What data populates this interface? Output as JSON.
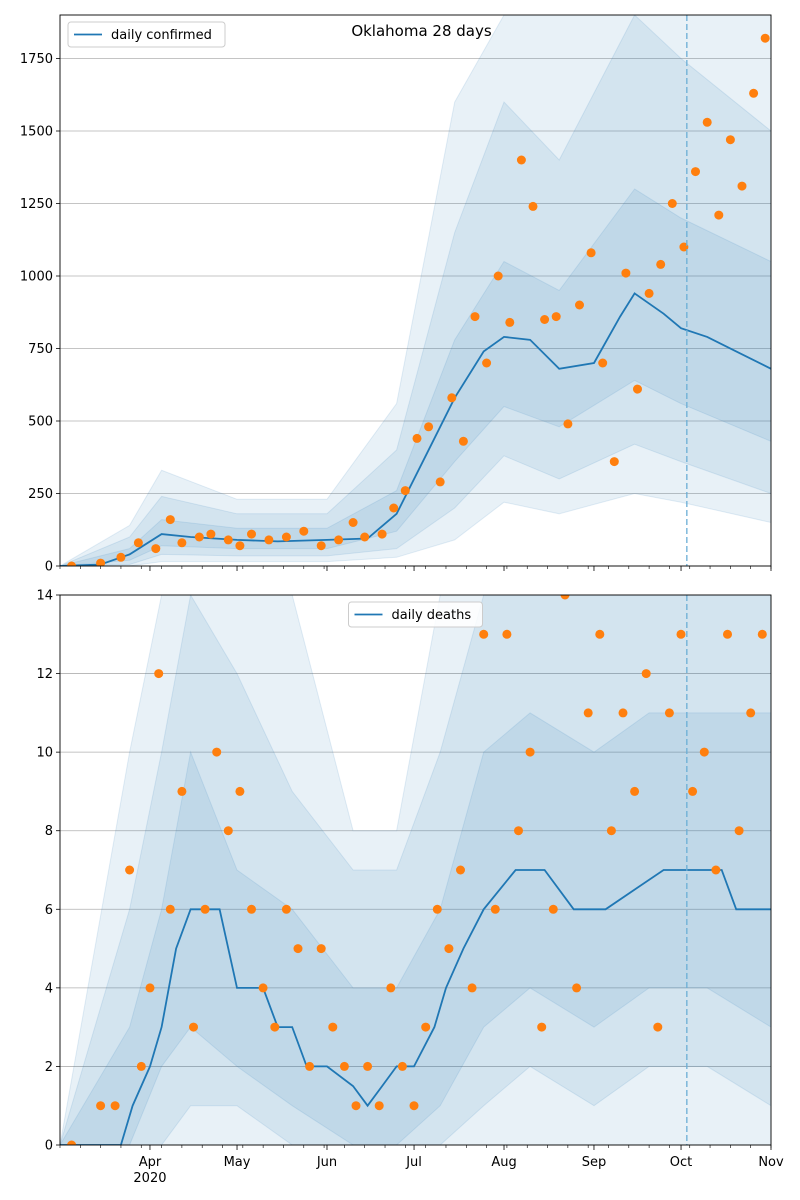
{
  "chart_data": [
    {
      "type": "line",
      "title": "Oklahoma 28 days",
      "legend": {
        "label": "daily confirmed",
        "placement": "top-left"
      },
      "ylim": [
        0,
        1900
      ],
      "yticks": [
        0,
        250,
        500,
        750,
        1000,
        1250,
        1500,
        1750
      ],
      "xlim": [
        "2020-03-01",
        "2020-11-01"
      ],
      "vline": "2020-10-03",
      "grid": "y",
      "colors": {
        "line": "#1f77b4",
        "points": "#ff7f0e",
        "band": "#1f77b4"
      },
      "series": [
        {
          "type": "line",
          "x": [
            "2020-03-01",
            "2020-03-15",
            "2020-03-25",
            "2020-04-05",
            "2020-04-15",
            "2020-05-01",
            "2020-05-15",
            "2020-06-01",
            "2020-06-15",
            "2020-06-25",
            "2020-07-05",
            "2020-07-15",
            "2020-07-25",
            "2020-08-01",
            "2020-08-10",
            "2020-08-20",
            "2020-09-01",
            "2020-09-10",
            "2020-09-15",
            "2020-09-25",
            "2020-10-01",
            "2020-10-10",
            "2020-10-20",
            "2020-11-01"
          ],
          "y": [
            0,
            5,
            40,
            110,
            100,
            90,
            85,
            90,
            95,
            180,
            380,
            580,
            740,
            790,
            780,
            680,
            700,
            860,
            940,
            870,
            820,
            790,
            740,
            680
          ]
        },
        {
          "type": "band",
          "name": "",
          "x": [
            "2020-03-01",
            "2020-03-25",
            "2020-04-05",
            "2020-05-01",
            "2020-06-01",
            "2020-06-25",
            "2020-07-15",
            "2020-08-01",
            "2020-08-20",
            "2020-09-15",
            "2020-10-01",
            "2020-11-01"
          ],
          "lower": [
            0,
            20,
            70,
            60,
            60,
            120,
            360,
            550,
            480,
            640,
            560,
            430
          ],
          "upper": [
            0,
            60,
            160,
            130,
            130,
            260,
            780,
            1050,
            950,
            1300,
            1200,
            1050
          ]
        },
        {
          "type": "band",
          "name": "",
          "x": [
            "2020-03-01",
            "2020-03-25",
            "2020-04-05",
            "2020-05-01",
            "2020-06-01",
            "2020-06-25",
            "2020-07-15",
            "2020-08-01",
            "2020-08-20",
            "2020-09-15",
            "2020-10-01",
            "2020-11-01"
          ],
          "lower": [
            0,
            5,
            40,
            35,
            35,
            60,
            200,
            380,
            300,
            420,
            360,
            250
          ],
          "upper": [
            0,
            100,
            240,
            180,
            180,
            400,
            1150,
            1600,
            1400,
            1900,
            1750,
            1500
          ]
        },
        {
          "type": "band",
          "name": "",
          "x": [
            "2020-03-01",
            "2020-03-25",
            "2020-04-05",
            "2020-05-01",
            "2020-06-01",
            "2020-06-25",
            "2020-07-15",
            "2020-08-01",
            "2020-08-20",
            "2020-09-15",
            "2020-10-01",
            "2020-11-01"
          ],
          "lower": [
            0,
            0,
            15,
            15,
            15,
            30,
            90,
            220,
            180,
            250,
            220,
            150
          ],
          "upper": [
            0,
            140,
            330,
            230,
            230,
            560,
            1600,
            1900,
            1900,
            1900,
            1900,
            1900
          ]
        },
        {
          "type": "scatter",
          "x": [
            "2020-03-05",
            "2020-03-15",
            "2020-03-22",
            "2020-03-28",
            "2020-04-03",
            "2020-04-08",
            "2020-04-12",
            "2020-04-18",
            "2020-04-22",
            "2020-04-28",
            "2020-05-02",
            "2020-05-06",
            "2020-05-12",
            "2020-05-18",
            "2020-05-24",
            "2020-05-30",
            "2020-06-05",
            "2020-06-10",
            "2020-06-14",
            "2020-06-20",
            "2020-06-24",
            "2020-06-28",
            "2020-07-02",
            "2020-07-06",
            "2020-07-10",
            "2020-07-14",
            "2020-07-18",
            "2020-07-22",
            "2020-07-26",
            "2020-07-30",
            "2020-08-03",
            "2020-08-07",
            "2020-08-11",
            "2020-08-15",
            "2020-08-19",
            "2020-08-23",
            "2020-08-27",
            "2020-08-31",
            "2020-09-04",
            "2020-09-08",
            "2020-09-12",
            "2020-09-16",
            "2020-09-20",
            "2020-09-24",
            "2020-09-28",
            "2020-10-02",
            "2020-10-06",
            "2020-10-10",
            "2020-10-14",
            "2020-10-18",
            "2020-10-22",
            "2020-10-26",
            "2020-10-30"
          ],
          "y": [
            0,
            10,
            30,
            80,
            60,
            160,
            80,
            100,
            110,
            90,
            70,
            110,
            90,
            100,
            120,
            70,
            90,
            150,
            100,
            110,
            200,
            260,
            440,
            480,
            290,
            580,
            430,
            860,
            700,
            1000,
            840,
            1400,
            1240,
            850,
            860,
            490,
            900,
            1080,
            700,
            360,
            1010,
            610,
            940,
            1040,
            1250,
            1100,
            1360,
            1530,
            1210,
            1470,
            1310,
            1630,
            1820
          ]
        }
      ]
    },
    {
      "type": "line",
      "title": "",
      "legend": {
        "label": "daily deaths",
        "placement": "top-center"
      },
      "ylim": [
        0,
        14
      ],
      "yticks": [
        0,
        2,
        4,
        6,
        8,
        10,
        12,
        14
      ],
      "xlim": [
        "2020-03-01",
        "2020-11-01"
      ],
      "xticks": [
        {
          "date": "2020-04-01",
          "label": "Apr",
          "sub": "2020"
        },
        {
          "date": "2020-05-01",
          "label": "May"
        },
        {
          "date": "2020-06-01",
          "label": "Jun"
        },
        {
          "date": "2020-07-01",
          "label": "Jul"
        },
        {
          "date": "2020-08-01",
          "label": "Aug"
        },
        {
          "date": "2020-09-01",
          "label": "Sep"
        },
        {
          "date": "2020-10-01",
          "label": "Oct"
        },
        {
          "date": "2020-11-01",
          "label": "Nov"
        }
      ],
      "vline": "2020-10-03",
      "grid": "y",
      "colors": {
        "line": "#1f77b4",
        "points": "#ff7f0e",
        "band": "#1f77b4"
      },
      "series": [
        {
          "type": "line",
          "x": [
            "2020-03-01",
            "2020-03-22",
            "2020-03-26",
            "2020-04-01",
            "2020-04-05",
            "2020-04-10",
            "2020-04-15",
            "2020-04-20",
            "2020-04-25",
            "2020-05-01",
            "2020-05-10",
            "2020-05-15",
            "2020-05-20",
            "2020-05-25",
            "2020-06-01",
            "2020-06-10",
            "2020-06-15",
            "2020-06-20",
            "2020-06-25",
            "2020-07-01",
            "2020-07-08",
            "2020-07-12",
            "2020-07-18",
            "2020-07-25",
            "2020-08-05",
            "2020-08-15",
            "2020-08-25",
            "2020-09-05",
            "2020-09-15",
            "2020-09-25",
            "2020-10-05",
            "2020-10-15",
            "2020-10-20",
            "2020-11-01"
          ],
          "y": [
            0,
            0,
            1,
            2,
            3,
            5,
            6,
            6,
            6,
            4,
            4,
            3,
            3,
            2,
            2,
            1.5,
            1,
            1.5,
            2,
            2,
            3,
            4,
            5,
            6,
            7,
            7,
            6,
            6,
            6.5,
            7,
            7,
            7,
            6,
            6
          ]
        },
        {
          "type": "band",
          "name": "",
          "x": [
            "2020-03-01",
            "2020-03-25",
            "2020-04-05",
            "2020-04-15",
            "2020-05-01",
            "2020-05-20",
            "2020-06-10",
            "2020-06-25",
            "2020-07-10",
            "2020-07-25",
            "2020-08-10",
            "2020-09-01",
            "2020-09-20",
            "2020-10-10",
            "2020-11-01"
          ],
          "lower": [
            0,
            0,
            2,
            3,
            2,
            1,
            0,
            0,
            1,
            3,
            4,
            3,
            4,
            4,
            3
          ],
          "upper": [
            0,
            3,
            6,
            10,
            7,
            6,
            4,
            4,
            6,
            10,
            11,
            10,
            11,
            11,
            11
          ]
        },
        {
          "type": "band",
          "name": "",
          "x": [
            "2020-03-01",
            "2020-03-25",
            "2020-04-05",
            "2020-04-15",
            "2020-05-01",
            "2020-05-20",
            "2020-06-10",
            "2020-06-25",
            "2020-07-10",
            "2020-07-25",
            "2020-08-10",
            "2020-09-01",
            "2020-09-20",
            "2020-10-10",
            "2020-11-01"
          ],
          "lower": [
            0,
            0,
            0,
            1,
            1,
            0,
            0,
            0,
            0,
            1,
            2,
            1,
            2,
            2,
            1
          ],
          "upper": [
            0,
            6,
            10,
            14,
            12,
            9,
            7,
            7,
            10,
            14,
            14,
            14,
            14,
            14,
            14
          ]
        },
        {
          "type": "band",
          "name": "",
          "x": [
            "2020-03-01",
            "2020-03-25",
            "2020-04-05",
            "2020-04-15",
            "2020-05-01",
            "2020-05-20",
            "2020-06-10",
            "2020-06-25",
            "2020-07-10",
            "2020-07-25",
            "2020-08-10",
            "2020-09-01",
            "2020-09-20",
            "2020-10-10",
            "2020-11-01"
          ],
          "lower": [
            0,
            0,
            0,
            0,
            0,
            0,
            0,
            0,
            0,
            0,
            0,
            0,
            0,
            0,
            0
          ],
          "upper": [
            0,
            10,
            14,
            14,
            14,
            14,
            8,
            8,
            14,
            14,
            14,
            14,
            14,
            14,
            14
          ]
        },
        {
          "type": "scatter",
          "x": [
            "2020-03-05",
            "2020-03-15",
            "2020-03-20",
            "2020-03-25",
            "2020-03-29",
            "2020-04-01",
            "2020-04-04",
            "2020-04-08",
            "2020-04-12",
            "2020-04-16",
            "2020-04-20",
            "2020-04-24",
            "2020-04-28",
            "2020-05-02",
            "2020-05-06",
            "2020-05-10",
            "2020-05-14",
            "2020-05-18",
            "2020-05-22",
            "2020-05-26",
            "2020-05-30",
            "2020-06-03",
            "2020-06-07",
            "2020-06-11",
            "2020-06-15",
            "2020-06-19",
            "2020-06-23",
            "2020-06-27",
            "2020-07-01",
            "2020-07-05",
            "2020-07-09",
            "2020-07-13",
            "2020-07-17",
            "2020-07-21",
            "2020-07-25",
            "2020-07-29",
            "2020-08-02",
            "2020-08-06",
            "2020-08-10",
            "2020-08-14",
            "2020-08-18",
            "2020-08-22",
            "2020-08-26",
            "2020-08-30",
            "2020-09-03",
            "2020-09-07",
            "2020-09-11",
            "2020-09-15",
            "2020-09-19",
            "2020-09-23",
            "2020-09-27",
            "2020-10-01",
            "2020-10-05",
            "2020-10-09",
            "2020-10-13",
            "2020-10-17",
            "2020-10-21",
            "2020-10-25",
            "2020-10-29"
          ],
          "y": [
            0,
            1,
            1,
            7,
            2,
            4,
            12,
            6,
            9,
            3,
            6,
            10,
            8,
            9,
            6,
            4,
            3,
            6,
            5,
            2,
            5,
            3,
            2,
            1,
            2,
            1,
            4,
            2,
            1,
            3,
            6,
            5,
            7,
            4,
            13,
            6,
            13,
            8,
            10,
            3,
            6,
            14,
            4,
            11,
            13,
            8,
            11,
            9,
            12,
            3,
            11,
            13,
            9,
            10,
            7,
            13,
            8,
            11,
            13
          ]
        }
      ]
    }
  ]
}
